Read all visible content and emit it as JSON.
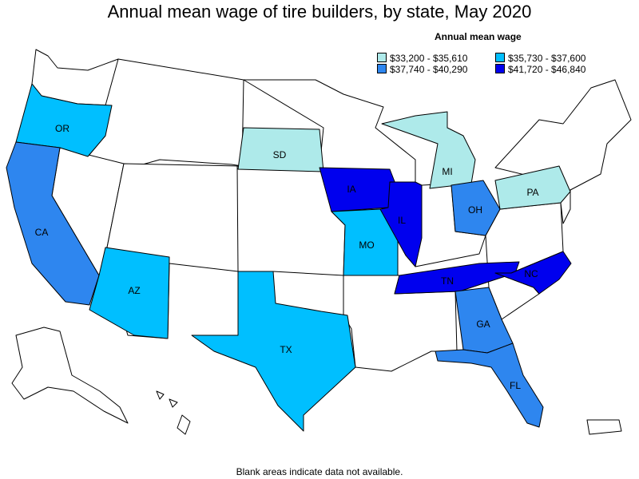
{
  "title": "Annual mean wage of tire builders, by state, May 2020",
  "legend": {
    "title": "Annual mean wage",
    "items": [
      {
        "label": "$33,200 - $35,610",
        "color": "#aeeaea"
      },
      {
        "label": "$35,730 - $37,600",
        "color": "#00bfff"
      },
      {
        "label": "$37,740 - $40,290",
        "color": "#2e86ef"
      },
      {
        "label": "$41,720 - $46,840",
        "color": "#0000ee"
      }
    ]
  },
  "states": [
    {
      "abbr": "OR",
      "bin": 1
    },
    {
      "abbr": "CA",
      "bin": 2
    },
    {
      "abbr": "AZ",
      "bin": 1
    },
    {
      "abbr": "TX",
      "bin": 1
    },
    {
      "abbr": "SD",
      "bin": 0
    },
    {
      "abbr": "IA",
      "bin": 3
    },
    {
      "abbr": "MO",
      "bin": 1
    },
    {
      "abbr": "IL",
      "bin": 3
    },
    {
      "abbr": "MI",
      "bin": 0
    },
    {
      "abbr": "OH",
      "bin": 2
    },
    {
      "abbr": "PA",
      "bin": 0
    },
    {
      "abbr": "TN",
      "bin": 3
    },
    {
      "abbr": "NC",
      "bin": 3
    },
    {
      "abbr": "GA",
      "bin": 2
    },
    {
      "abbr": "FL",
      "bin": 2
    }
  ],
  "footnote": "Blank areas indicate data not available."
}
